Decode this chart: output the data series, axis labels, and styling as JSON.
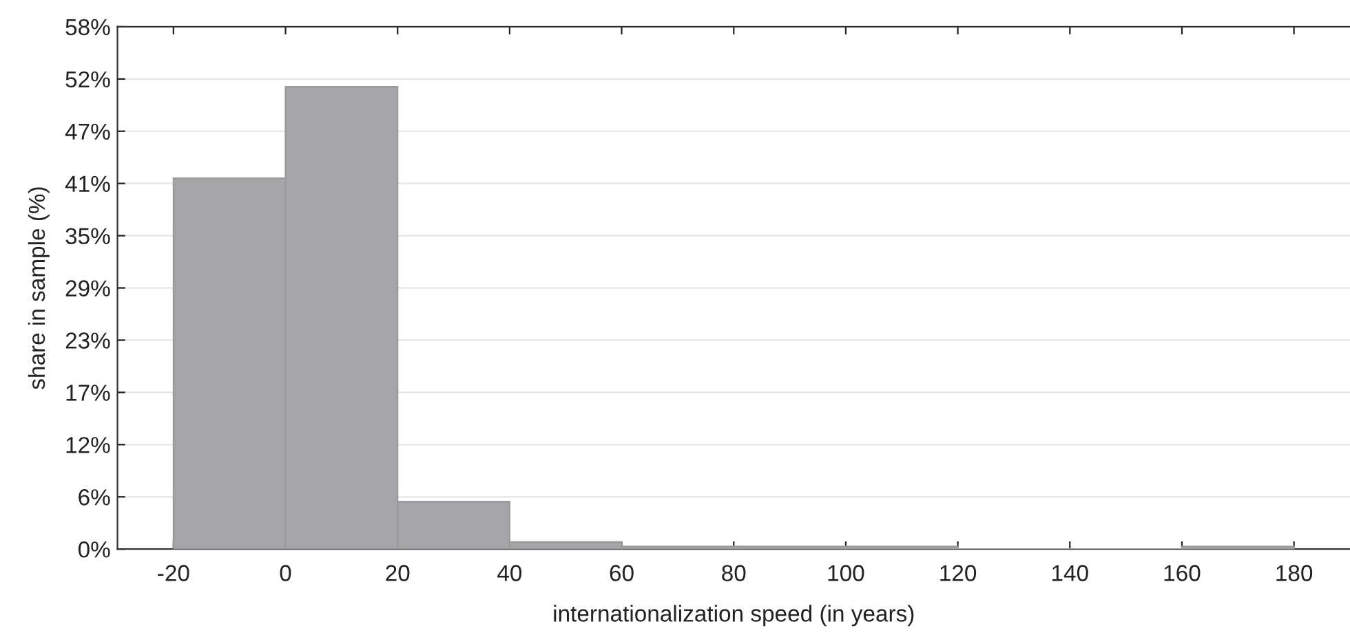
{
  "chart_data": {
    "type": "histogram",
    "xlabel": "internationalization speed (in years)",
    "ylabel": "share in sample (%)",
    "bins": [
      -20,
      0,
      20,
      40,
      60,
      80,
      100,
      120,
      140,
      160,
      180
    ],
    "values": [
      41.4,
      51.6,
      5.3,
      0.8,
      0.3,
      0.3,
      0.3,
      0,
      0,
      0.3
    ],
    "color": "#a4a5a8",
    "xlim": [
      -30,
      190
    ],
    "xticks": [
      -20,
      0,
      20,
      40,
      60,
      80,
      100,
      120,
      140,
      160,
      180
    ],
    "ylim": [
      0,
      58.3
    ],
    "yticks": [
      {
        "value": 0,
        "label": "0%"
      },
      {
        "value": 5.83,
        "label": "6%"
      },
      {
        "value": 11.66,
        "label": "12%"
      },
      {
        "value": 17.49,
        "label": "17%"
      },
      {
        "value": 23.32,
        "label": "23%"
      },
      {
        "value": 29.15,
        "label": "29%"
      },
      {
        "value": 34.98,
        "label": "35%"
      },
      {
        "value": 40.81,
        "label": "41%"
      },
      {
        "value": 46.64,
        "label": "47%"
      },
      {
        "value": 52.47,
        "label": "52%"
      },
      {
        "value": 58.3,
        "label": "58%"
      }
    ],
    "grid": "y"
  }
}
